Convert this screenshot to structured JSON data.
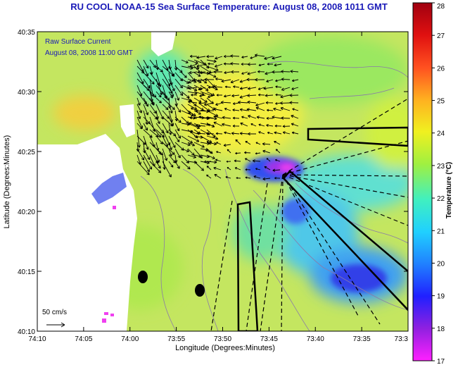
{
  "title": {
    "text": "RU COOL  NOAA-15  Sea Surface Temperature:  August 08, 2008 1011 GMT",
    "color": "#1a1ab8"
  },
  "legend_overlay": {
    "line1": "Raw Surface Current",
    "line2": "August 08, 2008 11:00 GMT",
    "color": "#1a1ab8"
  },
  "axes": {
    "xlabel": "Longitude (Degrees:Minutes)",
    "ylabel": "Latitude (Degrees:Minutes)",
    "x_ticks": [
      "74:10",
      "74:05",
      "74:00",
      "73:55",
      "73:50",
      "73:45",
      "73:40",
      "73:35",
      "73:3"
    ],
    "y_ticks": [
      "40:35",
      "40:30",
      "40:25",
      "40:20",
      "40:15",
      "40:10"
    ]
  },
  "scale_bar": {
    "label": "50 cm/s"
  },
  "colorbar": {
    "label": "Temperature (°C)",
    "ticks": [
      "28",
      "27",
      "26",
      "25",
      "24",
      "23",
      "22",
      "21",
      "20",
      "19",
      "18",
      "17"
    ],
    "min": 17,
    "max": 28
  },
  "colors": {
    "land": "#ffffff",
    "sst_base": "#c8e860",
    "cold": "#4a6cf0",
    "coldest": "#e040f0",
    "warm": "#f6f040",
    "frame": "#000000"
  }
}
